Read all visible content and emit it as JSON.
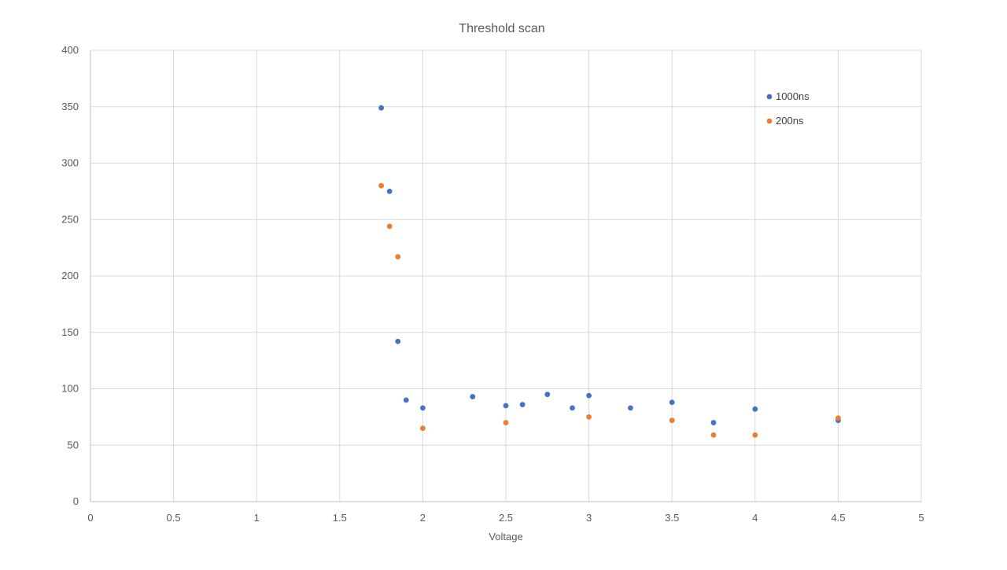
{
  "chart_data": {
    "type": "scatter",
    "title": "Threshold scan",
    "xlabel": "Voltage",
    "ylabel": "",
    "xlim": [
      0,
      5
    ],
    "ylim": [
      0,
      400
    ],
    "x_ticks": [
      0,
      0.5,
      1,
      1.5,
      2,
      2.5,
      3,
      3.5,
      4,
      4.5,
      5
    ],
    "y_ticks": [
      0,
      50,
      100,
      150,
      200,
      250,
      300,
      350,
      400
    ],
    "x_tick_labels": [
      "0",
      "0.5",
      "1",
      "1.5",
      "2",
      "2.5",
      "3",
      "3.5",
      "4",
      "4.5",
      "5"
    ],
    "y_tick_labels": [
      "0",
      "50",
      "100",
      "150",
      "200",
      "250",
      "300",
      "350",
      "400"
    ],
    "grid": true,
    "legend_position": "top-right",
    "series": [
      {
        "name": "1000ns",
        "color": "#4472c4",
        "points": [
          {
            "x": 1.75,
            "y": 349
          },
          {
            "x": 1.8,
            "y": 275
          },
          {
            "x": 1.85,
            "y": 142
          },
          {
            "x": 1.9,
            "y": 90
          },
          {
            "x": 2.0,
            "y": 83
          },
          {
            "x": 2.3,
            "y": 93
          },
          {
            "x": 2.5,
            "y": 85
          },
          {
            "x": 2.6,
            "y": 86
          },
          {
            "x": 2.75,
            "y": 95
          },
          {
            "x": 2.9,
            "y": 83
          },
          {
            "x": 3.0,
            "y": 94
          },
          {
            "x": 3.25,
            "y": 83
          },
          {
            "x": 3.5,
            "y": 88
          },
          {
            "x": 3.75,
            "y": 70
          },
          {
            "x": 4.0,
            "y": 82
          },
          {
            "x": 4.5,
            "y": 72
          }
        ]
      },
      {
        "name": "200ns",
        "color": "#ed7d31",
        "points": [
          {
            "x": 1.75,
            "y": 280
          },
          {
            "x": 1.8,
            "y": 244
          },
          {
            "x": 1.85,
            "y": 217
          },
          {
            "x": 2.0,
            "y": 65
          },
          {
            "x": 2.5,
            "y": 70
          },
          {
            "x": 3.0,
            "y": 75
          },
          {
            "x": 3.5,
            "y": 72
          },
          {
            "x": 3.75,
            "y": 59
          },
          {
            "x": 4.0,
            "y": 59
          },
          {
            "x": 4.5,
            "y": 74
          }
        ]
      }
    ]
  }
}
